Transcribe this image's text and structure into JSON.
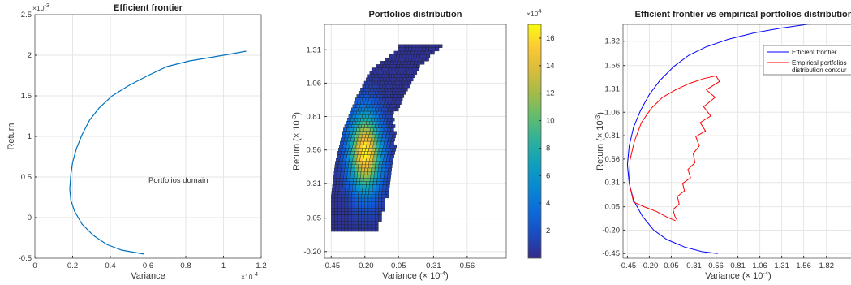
{
  "charts": [
    {
      "id": "efficient-frontier",
      "type": "line",
      "title": "Efficient frontier",
      "xlabel": "Variance",
      "ylabel": "Return",
      "x_exponent_label": "×10",
      "x_exponent_power": "-4",
      "y_exponent_label": "×10",
      "y_exponent_power": "-3",
      "xlim": [
        0,
        1.2
      ],
      "ylim": [
        -0.5,
        2.5
      ],
      "xticks": [
        "0",
        "0.2",
        "0.4",
        "0.6",
        "0.8",
        "1",
        "1.2"
      ],
      "yticks": [
        "-0.5",
        "0",
        "0.5",
        "1",
        "1.5",
        "2",
        "2.5"
      ],
      "annotation": "Portfolios domain",
      "line_color": "#0072BD",
      "series": [
        {
          "x": [
            0.58,
            0.46,
            0.38,
            0.31,
            0.25,
            0.21,
            0.19,
            0.185,
            0.19,
            0.2,
            0.22,
            0.25,
            0.29,
            0.34,
            0.41,
            0.5,
            0.6,
            0.7,
            0.82,
            0.95,
            1.05,
            1.12
          ],
          "y": [
            -0.45,
            -0.4,
            -0.33,
            -0.22,
            -0.08,
            0.08,
            0.22,
            0.35,
            0.52,
            0.68,
            0.85,
            1.02,
            1.2,
            1.35,
            1.5,
            1.63,
            1.75,
            1.86,
            1.93,
            1.98,
            2.02,
            2.05
          ]
        }
      ]
    },
    {
      "id": "portfolios-distribution",
      "type": "heatmap",
      "title": "Portfolios distribution",
      "xlabel": "Variance (× 10",
      "xlabel_power": "-4",
      "ylabel": "Return (× 10",
      "ylabel_power": "-3",
      "colorbar_exponent_label": "×10",
      "colorbar_exponent_power": "4",
      "xlim": [
        -0.5,
        0.85
      ],
      "ylim": [
        -0.25,
        1.5
      ],
      "xticks": [
        "-0.45",
        "-0.20",
        "0.05",
        "0.31",
        "0.56"
      ],
      "xtick_values": [
        -0.45,
        -0.2,
        0.05,
        0.31,
        0.56
      ],
      "yticks": [
        "-0.20",
        "0.05",
        "0.31",
        "0.56",
        "0.81",
        "1.06",
        "1.31"
      ],
      "ytick_values": [
        -0.2,
        0.05,
        0.31,
        0.56,
        0.81,
        1.06,
        1.31
      ],
      "colorbar_ticks": [
        "2",
        "4",
        "6",
        "8",
        "10",
        "12",
        "14",
        "16"
      ],
      "colorbar_tick_values": [
        2,
        4,
        6,
        8,
        10,
        12,
        14,
        16
      ],
      "colorbar_range": [
        0,
        17
      ],
      "peak": {
        "x": -0.21,
        "y": 0.53,
        "value": 16.5
      },
      "cell_size": 0.025,
      "region": {
        "y_from": -0.05,
        "y_to": 1.33,
        "left_edge": [
          [
            -0.05,
            -0.45
          ],
          [
            0.2,
            -0.45
          ],
          [
            0.45,
            -0.42
          ],
          [
            0.7,
            -0.36
          ],
          [
            0.95,
            -0.26
          ],
          [
            1.15,
            -0.15
          ],
          [
            1.3,
            0.05
          ]
        ],
        "right_edge": [
          [
            -0.05,
            -0.12
          ],
          [
            0.1,
            -0.07
          ],
          [
            0.3,
            -0.02
          ],
          [
            0.55,
            0.02
          ],
          [
            0.8,
            0.0
          ],
          [
            1.0,
            0.1
          ],
          [
            1.2,
            0.22
          ],
          [
            1.33,
            0.38
          ]
        ]
      }
    },
    {
      "id": "frontier-vs-empirical",
      "type": "line",
      "title": "Efficient frontier vs empirical portfolios distribution",
      "xlabel": "Variance (× 10",
      "xlabel_power": "-4",
      "ylabel": "Return (× 10",
      "ylabel_power": "-3",
      "xlim": [
        -0.5,
        2.1
      ],
      "ylim": [
        -0.5,
        2.0
      ],
      "xticks": [
        "-0.45",
        "-0.20",
        "0.05",
        "0.31",
        "0.56",
        "0.81",
        "1.06",
        "1.31",
        "1.56",
        "1.82"
      ],
      "xtick_values": [
        -0.45,
        -0.2,
        0.05,
        0.31,
        0.56,
        0.81,
        1.06,
        1.31,
        1.56,
        1.82
      ],
      "yticks": [
        "-0.45",
        "-0.20",
        "0.05",
        "0.31",
        "0.56",
        "0.81",
        "1.06",
        "1.31",
        "1.56",
        "1.82"
      ],
      "ytick_values": [
        -0.45,
        -0.2,
        0.05,
        0.31,
        0.56,
        0.81,
        1.06,
        1.31,
        1.56,
        1.82
      ],
      "legend": {
        "placement": "top-right",
        "entries": [
          "Efficient frontier",
          "Empirical portfolios",
          "distribution contour"
        ]
      },
      "series": [
        {
          "color": "#0000FF",
          "x": [
            0.58,
            0.4,
            0.2,
            0.0,
            -0.15,
            -0.28,
            -0.38,
            -0.43,
            -0.45,
            -0.43,
            -0.38,
            -0.3,
            -0.2,
            -0.08,
            0.08,
            0.25,
            0.45,
            0.7,
            1.0,
            1.3,
            1.6,
            1.9,
            2.1
          ],
          "y": [
            -0.45,
            -0.43,
            -0.38,
            -0.3,
            -0.2,
            -0.05,
            0.12,
            0.3,
            0.5,
            0.7,
            0.9,
            1.08,
            1.25,
            1.4,
            1.55,
            1.67,
            1.76,
            1.84,
            1.91,
            1.96,
            2.0,
            2.03,
            2.05
          ]
        },
        {
          "color": "#FF0000",
          "x": [
            0.1,
            0.0,
            -0.12,
            -0.26,
            -0.38,
            -0.43,
            -0.42,
            -0.37,
            -0.29,
            -0.18,
            -0.05,
            0.1,
            0.26,
            0.42,
            0.56,
            0.6,
            0.45,
            0.55,
            0.42,
            0.5,
            0.38,
            0.44,
            0.33,
            0.37,
            0.3,
            0.32,
            0.24,
            0.27,
            0.18,
            0.2,
            0.12,
            0.14,
            0.07,
            0.09,
            0.12
          ],
          "y": [
            -0.1,
            -0.06,
            0.0,
            0.05,
            0.1,
            0.3,
            0.55,
            0.75,
            0.95,
            1.1,
            1.22,
            1.3,
            1.37,
            1.42,
            1.45,
            1.39,
            1.3,
            1.22,
            1.12,
            1.02,
            0.95,
            0.86,
            0.8,
            0.7,
            0.62,
            0.52,
            0.45,
            0.36,
            0.3,
            0.22,
            0.16,
            0.08,
            0.02,
            -0.05,
            -0.1
          ]
        }
      ]
    }
  ]
}
